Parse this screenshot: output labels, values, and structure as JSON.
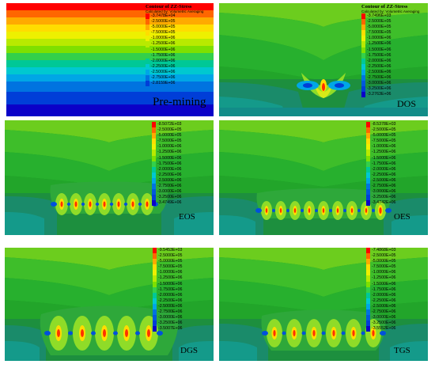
{
  "legend_header": {
    "title": "Contour of ZZ-Stress",
    "subtitle": "Calculated by: Volumetric Averaging"
  },
  "colors": [
    "#ff0000",
    "#ff6600",
    "#ffaa00",
    "#ffdd00",
    "#eef000",
    "#b8ea00",
    "#7ee000",
    "#33d04a",
    "#00c896",
    "#00c8d0",
    "#00a6e6",
    "#0073e0",
    "#003ed8",
    "#0b00c8"
  ],
  "panels": [
    {
      "id": "premining",
      "label": "Pre-mining",
      "legend": [
        "-3.7478E+04",
        "-2.5000E+05",
        "-5.0000E+05",
        "-7.5000E+05",
        "-1.0000E+06",
        "-1.2500E+06",
        "-1.5000E+06",
        "-1.7500E+06",
        "-2.0000E+06",
        "-2.2500E+06",
        "-2.5000E+06",
        "-2.7500E+06",
        "-2.8159E+06"
      ]
    },
    {
      "id": "dos",
      "label": "DOS",
      "legend": [
        "-3.7496E+03",
        "-2.5000E+05",
        "-5.0000E+05",
        "-7.5000E+05",
        "-1.0000E+06",
        "-1.2500E+06",
        "-1.5000E+06",
        "-1.7500E+06",
        "-2.0000E+06",
        "-2.2500E+06",
        "-2.5000E+06",
        "-2.7500E+06",
        "-3.0000E+06",
        "-3.2500E+06",
        "-3.2763E+06"
      ]
    },
    {
      "id": "eos",
      "label": "EOS",
      "legend": [
        "-8.5072E+03",
        "-2.5000E+05",
        "-5.0000E+05",
        "-7.5000E+05",
        "-1.0000E+06",
        "-1.2500E+06",
        "-1.5000E+06",
        "-1.7500E+06",
        "-2.0000E+06",
        "-2.2500E+06",
        "-2.5000E+06",
        "-2.7500E+06",
        "-3.0000E+06",
        "-3.2500E+06",
        "-3.4749E+06"
      ]
    },
    {
      "id": "oes",
      "label": "OES",
      "legend": [
        "-8.5378E+03",
        "-2.5000E+05",
        "-5.0000E+05",
        "-7.5000E+05",
        "-1.0000E+06",
        "-1.2500E+06",
        "-1.5000E+06",
        "-1.7500E+06",
        "-2.0000E+06",
        "-2.2500E+06",
        "-2.5000E+06",
        "-2.7500E+06",
        "-3.0000E+06",
        "-3.2500E+06",
        "-3.4742E+06"
      ]
    },
    {
      "id": "dgs",
      "label": "DGS",
      "legend": [
        "-9.5453E+03",
        "-2.5000E+05",
        "-5.0000E+05",
        "-7.5000E+05",
        "-1.0000E+06",
        "-1.2500E+06",
        "-1.5000E+06",
        "-1.7500E+06",
        "-2.0000E+06",
        "-2.2500E+06",
        "-2.5000E+06",
        "-2.7500E+06",
        "-3.0000E+06",
        "-3.2500E+06",
        "-3.5007E+06"
      ]
    },
    {
      "id": "tgs",
      "label": "TGS",
      "legend": [
        "-7.4868E+03",
        "-2.5000E+05",
        "-5.0000E+05",
        "-7.5000E+05",
        "-1.0000E+06",
        "-1.2500E+06",
        "-1.5000E+06",
        "-1.7500E+06",
        "-2.0000E+06",
        "-2.2500E+06",
        "-2.5000E+06",
        "-2.7500E+06",
        "-3.0000E+06",
        "-3.2500E+06",
        "-3.5552E+06"
      ]
    }
  ]
}
